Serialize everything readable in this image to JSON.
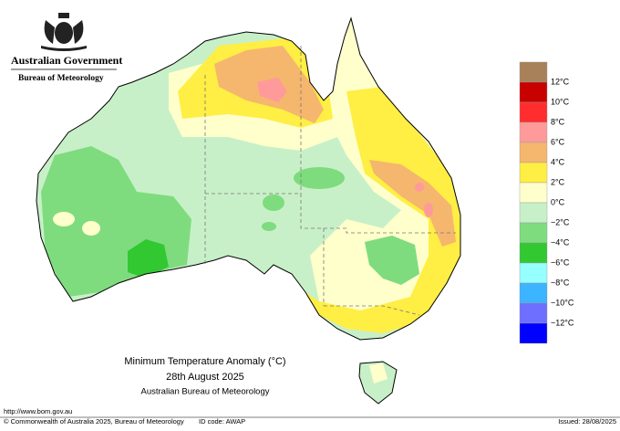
{
  "header": {
    "org": "Australian Government",
    "agency": "Bureau of Meteorology"
  },
  "title": {
    "line1": "Minimum Temperature Anomaly (°C)",
    "line2": "28th August 2025",
    "line3": "Australian Bureau of Meteorology"
  },
  "legend": {
    "labels": [
      "12°C",
      "10°C",
      "8°C",
      "6°C",
      "4°C",
      "2°C",
      "0°C",
      "−2°C",
      "−4°C",
      "−6°C",
      "−8°C",
      "−10°C",
      "−12°C"
    ],
    "colors": [
      "#a8805a",
      "#c80000",
      "#ff2d2d",
      "#ff9a9a",
      "#f5b66e",
      "#ffee44",
      "#ffffcc",
      "#c8f0c8",
      "#7edc7e",
      "#32c832",
      "#96ffff",
      "#3cb4ff",
      "#6e6eff",
      "#0000ff"
    ]
  },
  "footer": {
    "url": "http://www.bom.gov.au",
    "copyright": "© Commonwealth of Australia 2025, Bureau of Meteorology",
    "id": "ID code: AWAP",
    "issued": "Issued: 28/08/2025"
  }
}
